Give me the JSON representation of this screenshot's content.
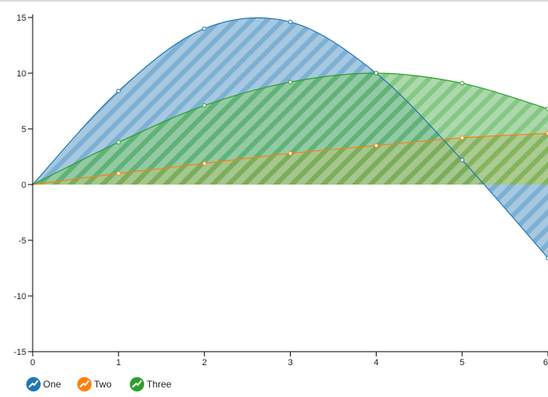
{
  "chart_data": {
    "type": "area",
    "title": "",
    "xlabel": "",
    "ylabel": "",
    "xlim": [
      0,
      6
    ],
    "ylim": [
      -15,
      15
    ],
    "x_ticks": [
      0,
      1,
      2,
      3,
      4,
      5,
      6
    ],
    "y_ticks": [
      15,
      10,
      5,
      0,
      -5,
      -10,
      -15
    ],
    "grid": false,
    "legend_position": "bottom-left",
    "x": [
      0,
      1,
      2,
      3,
      4,
      5,
      6
    ],
    "series": [
      {
        "name": "One",
        "color": "#1f77b4",
        "values": [
          0,
          8.4,
          14.0,
          14.6,
          10.0,
          2.2,
          -6.6
        ]
      },
      {
        "name": "Two",
        "color": "#ff7f0e",
        "values": [
          0,
          1.0,
          1.9,
          2.8,
          3.5,
          4.2,
          4.6
        ]
      },
      {
        "name": "Three",
        "color": "#2ca02c",
        "values": [
          0,
          3.8,
          7.1,
          9.2,
          10.0,
          9.1,
          6.8
        ]
      }
    ]
  }
}
